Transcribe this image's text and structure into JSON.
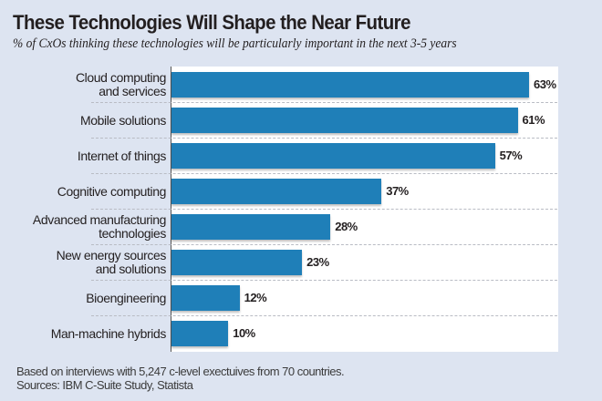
{
  "chart_data": {
    "type": "bar",
    "orientation": "horizontal",
    "title": "These Technologies Will Shape the Near Future",
    "subtitle": "% of CxOs thinking these technologies will be particularly important in the next 3-5 years",
    "categories": [
      [
        "Cloud computing",
        "and services"
      ],
      [
        "Mobile solutions"
      ],
      [
        "Internet of things"
      ],
      [
        "Cognitive computing"
      ],
      [
        "Advanced manufacturing",
        "technologies"
      ],
      [
        "New energy sources",
        "and solutions"
      ],
      [
        "Bioengineering"
      ],
      [
        "Man-machine hybrids"
      ]
    ],
    "values": [
      63,
      61,
      57,
      37,
      28,
      23,
      12,
      10
    ],
    "value_labels": [
      "63%",
      "61%",
      "57%",
      "37%",
      "28%",
      "23%",
      "12%",
      "10%"
    ],
    "xlabel": "",
    "ylabel": "",
    "xlim": [
      0,
      68
    ],
    "grid": false,
    "legend": "none",
    "bar_color": "#1f7fb8",
    "footnotes": [
      "Based on interviews with 5,247 c-level exectuives from 70 countries.",
      "Sources: IBM C-Suite Study, Statista"
    ]
  }
}
